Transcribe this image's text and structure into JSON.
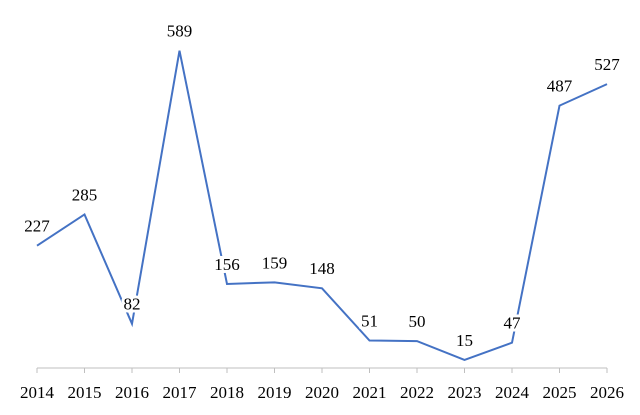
{
  "chart_data": {
    "type": "line",
    "categories": [
      "2014",
      "2015",
      "2016",
      "2017",
      "2018",
      "2019",
      "2020",
      "2021",
      "2022",
      "2023",
      "2024",
      "2025",
      "2026"
    ],
    "series": [
      {
        "color": "#4472c4",
        "values": [
          227,
          285,
          82,
          589,
          156,
          159,
          148,
          51,
          50,
          15,
          47,
          487,
          527
        ]
      }
    ],
    "ylim": [
      0,
      620
    ]
  }
}
